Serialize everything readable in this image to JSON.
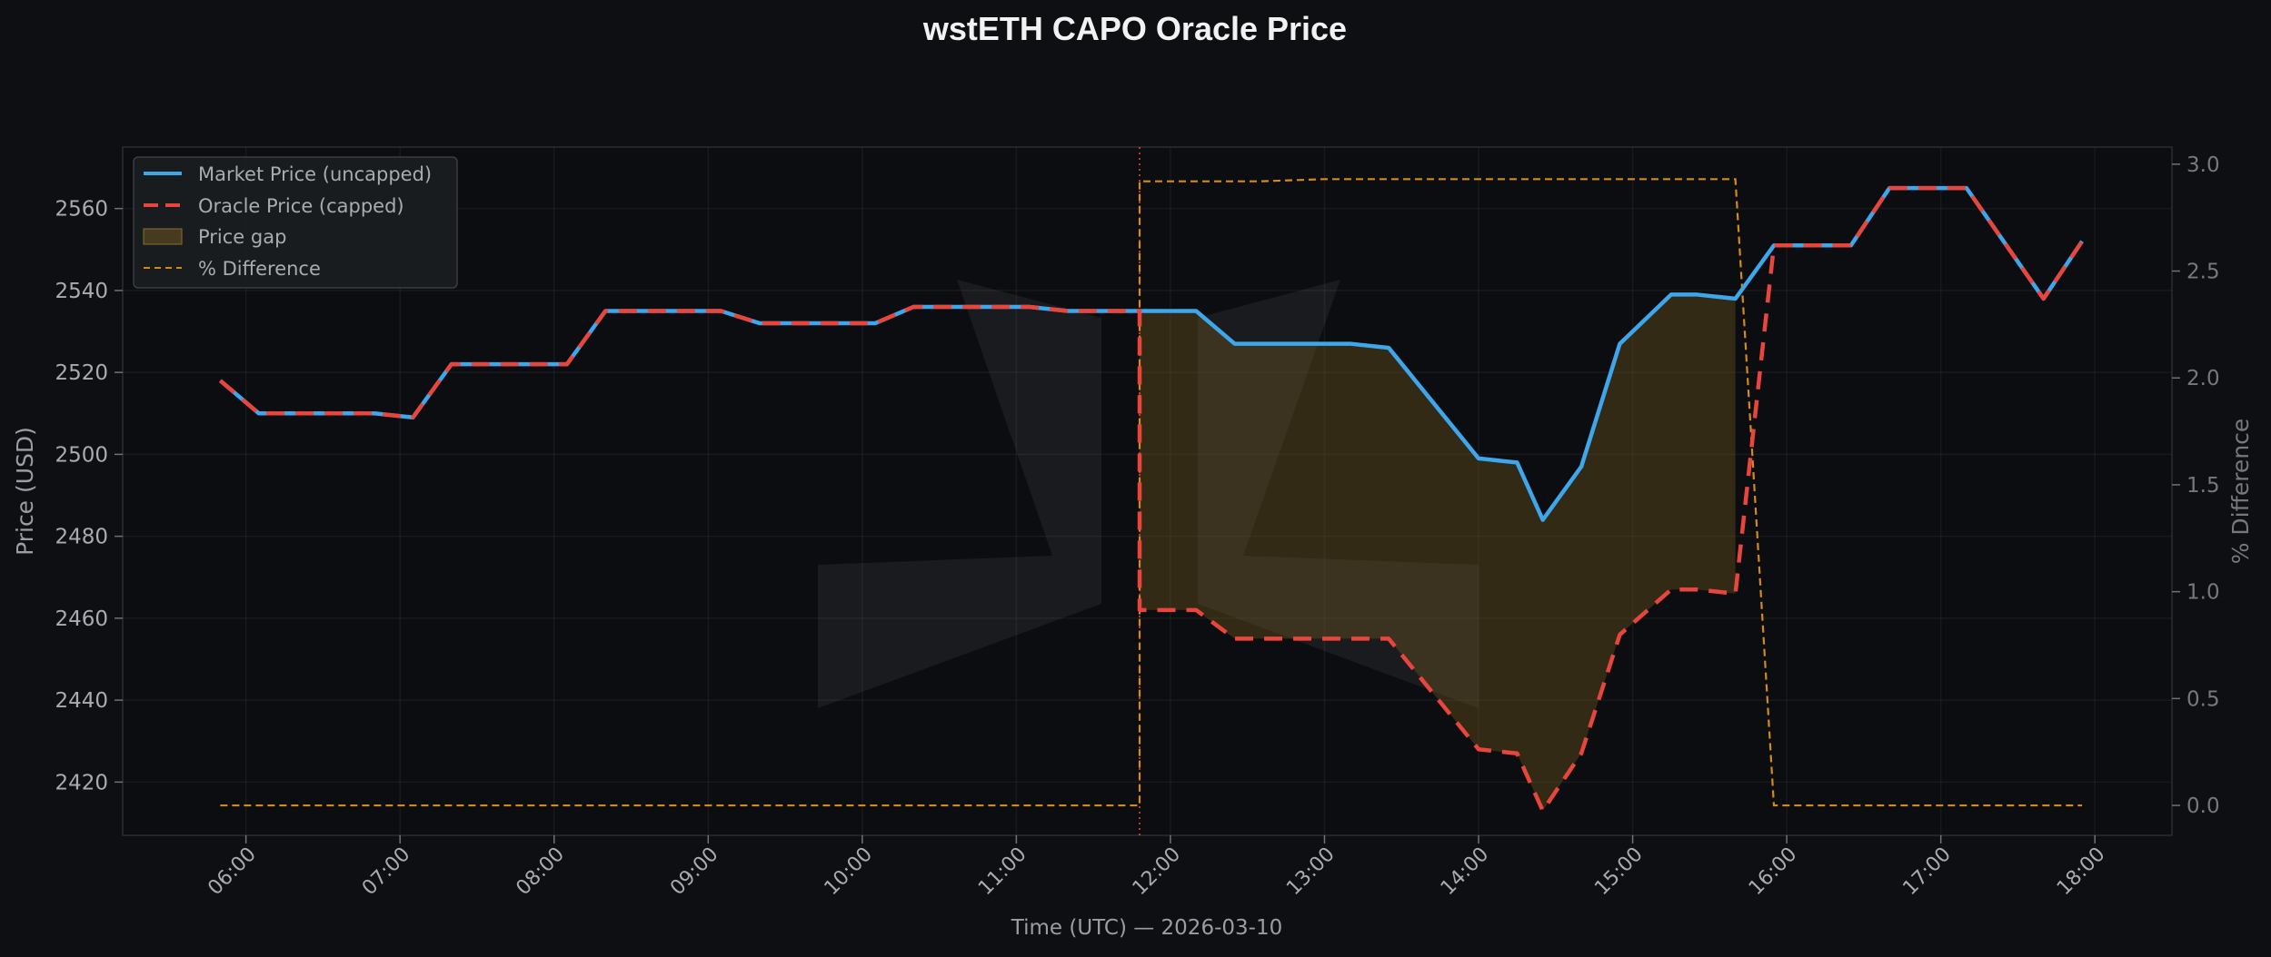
{
  "chart_data": {
    "type": "line",
    "title": "wstETH CAPO Oracle Price",
    "xlabel": "Time (UTC) — 2026-03-10",
    "ylabel": "Price (USD)",
    "y2label": "% Difference",
    "xlim_hours": [
      5.2,
      18.5
    ],
    "ylim": [
      2407,
      2575
    ],
    "y2lim": [
      -0.14,
      3.08
    ],
    "x_ticks": [
      "06:00",
      "07:00",
      "08:00",
      "09:00",
      "10:00",
      "11:00",
      "12:00",
      "13:00",
      "14:00",
      "15:00",
      "16:00",
      "17:00",
      "18:00"
    ],
    "y_ticks": [
      2420,
      2440,
      2460,
      2480,
      2500,
      2520,
      2540,
      2560
    ],
    "y2_ticks": [
      "0.0",
      "0.5",
      "1.0",
      "1.5",
      "2.0",
      "2.5",
      "3.0"
    ],
    "grid": true,
    "legend_position": "top-left",
    "series": [
      {
        "name": "Market Price (uncapped)",
        "color": "#3ea6ea",
        "x": [
          "05:50",
          "06:05",
          "06:50",
          "07:05",
          "07:20",
          "08:05",
          "08:20",
          "09:05",
          "09:20",
          "10:05",
          "10:20",
          "11:05",
          "11:20",
          "11:48",
          "12:10",
          "12:25",
          "12:35",
          "13:10",
          "13:25",
          "14:00",
          "14:15",
          "14:25",
          "14:40",
          "14:55",
          "15:15",
          "15:25",
          "15:40",
          "15:55",
          "16:10",
          "16:25",
          "16:40",
          "17:10",
          "17:40",
          "17:55"
        ],
        "values": [
          2518,
          2510,
          2510,
          2509,
          2522,
          2522,
          2535,
          2535,
          2532,
          2532,
          2536,
          2536,
          2535,
          2535,
          2535,
          2527,
          2527,
          2527,
          2526,
          2499,
          2498,
          2484,
          2497,
          2527,
          2539,
          2539,
          2538,
          2551,
          2551,
          2551,
          2565,
          2565,
          2538,
          2552
        ]
      },
      {
        "name": "Oracle Price (capped)",
        "color": "#e8453c",
        "x": [
          "05:50",
          "06:05",
          "06:50",
          "07:05",
          "07:20",
          "08:05",
          "08:20",
          "09:05",
          "09:20",
          "10:05",
          "10:20",
          "11:05",
          "11:20",
          "11:48",
          "11:48",
          "12:10",
          "12:25",
          "12:35",
          "13:10",
          "13:25",
          "14:00",
          "14:15",
          "14:25",
          "14:40",
          "14:55",
          "15:15",
          "15:25",
          "15:40",
          "15:55",
          "16:10",
          "16:25",
          "16:40",
          "17:10",
          "17:40",
          "17:55"
        ],
        "values": [
          2518,
          2510,
          2510,
          2509,
          2522,
          2522,
          2535,
          2535,
          2532,
          2532,
          2536,
          2536,
          2535,
          2535,
          2462,
          2462,
          2455,
          2455,
          2455,
          2455,
          2428,
          2427,
          2413,
          2427,
          2456,
          2467,
          2467,
          2466,
          2551,
          2551,
          2551,
          2565,
          2565,
          2538,
          2552
        ]
      },
      {
        "name": "Price gap",
        "color": "#6b5420"
      },
      {
        "name": "% Difference",
        "color": "#d4891c",
        "axis": "right",
        "x": [
          "05:50",
          "11:48",
          "11:48",
          "12:35",
          "13:00",
          "15:40",
          "15:55",
          "17:55"
        ],
        "values": [
          0.0,
          0.0,
          2.92,
          2.92,
          2.93,
          2.93,
          0.0,
          0.0
        ]
      }
    ],
    "annotations": {
      "cap_event_time": "11:48",
      "cap_event_color": "#e8453c"
    }
  }
}
